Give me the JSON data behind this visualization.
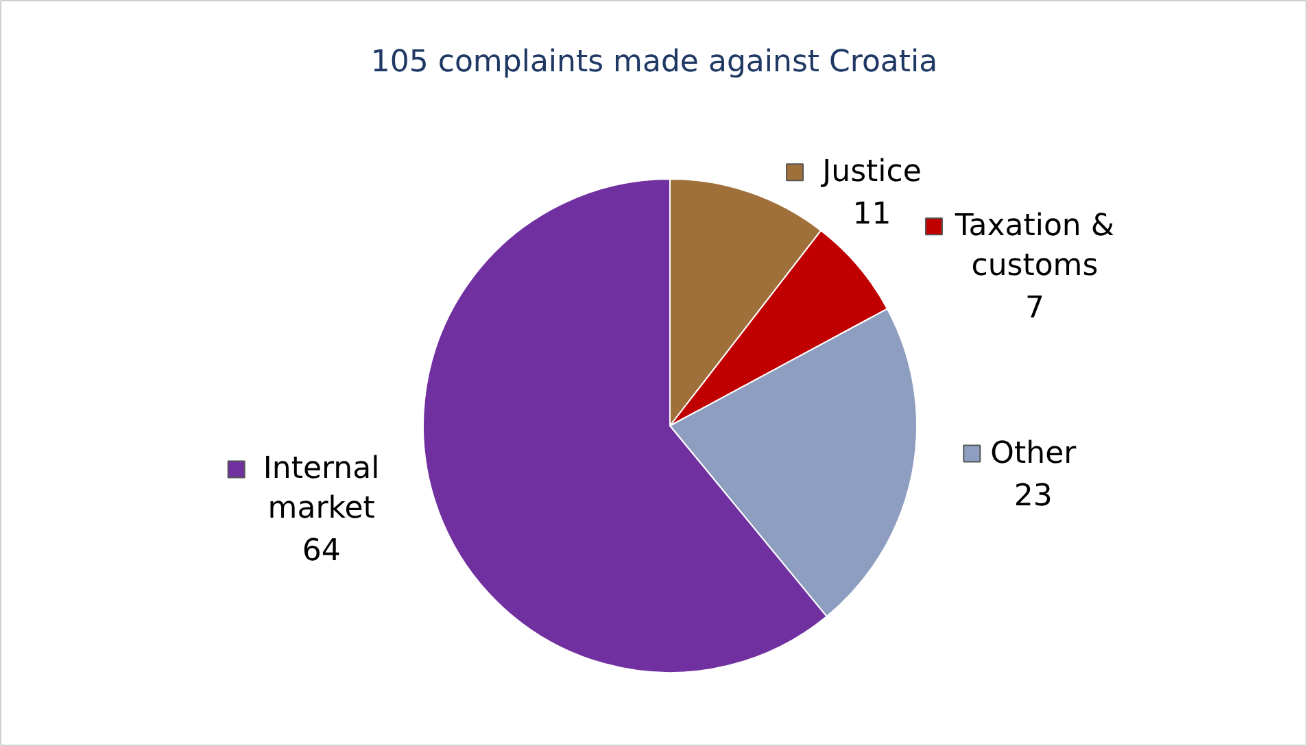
{
  "chart_data": {
    "type": "pie",
    "title": "105 complaints made against Croatia",
    "categories": [
      "Justice",
      "Taxation & customs",
      "Other",
      "Internal market"
    ],
    "values": [
      11,
      7,
      23,
      64
    ],
    "colors": [
      "#a0703a",
      "#c00000",
      "#8e9ec0",
      "#7030a0"
    ],
    "data_labels": true,
    "legend": "right"
  }
}
